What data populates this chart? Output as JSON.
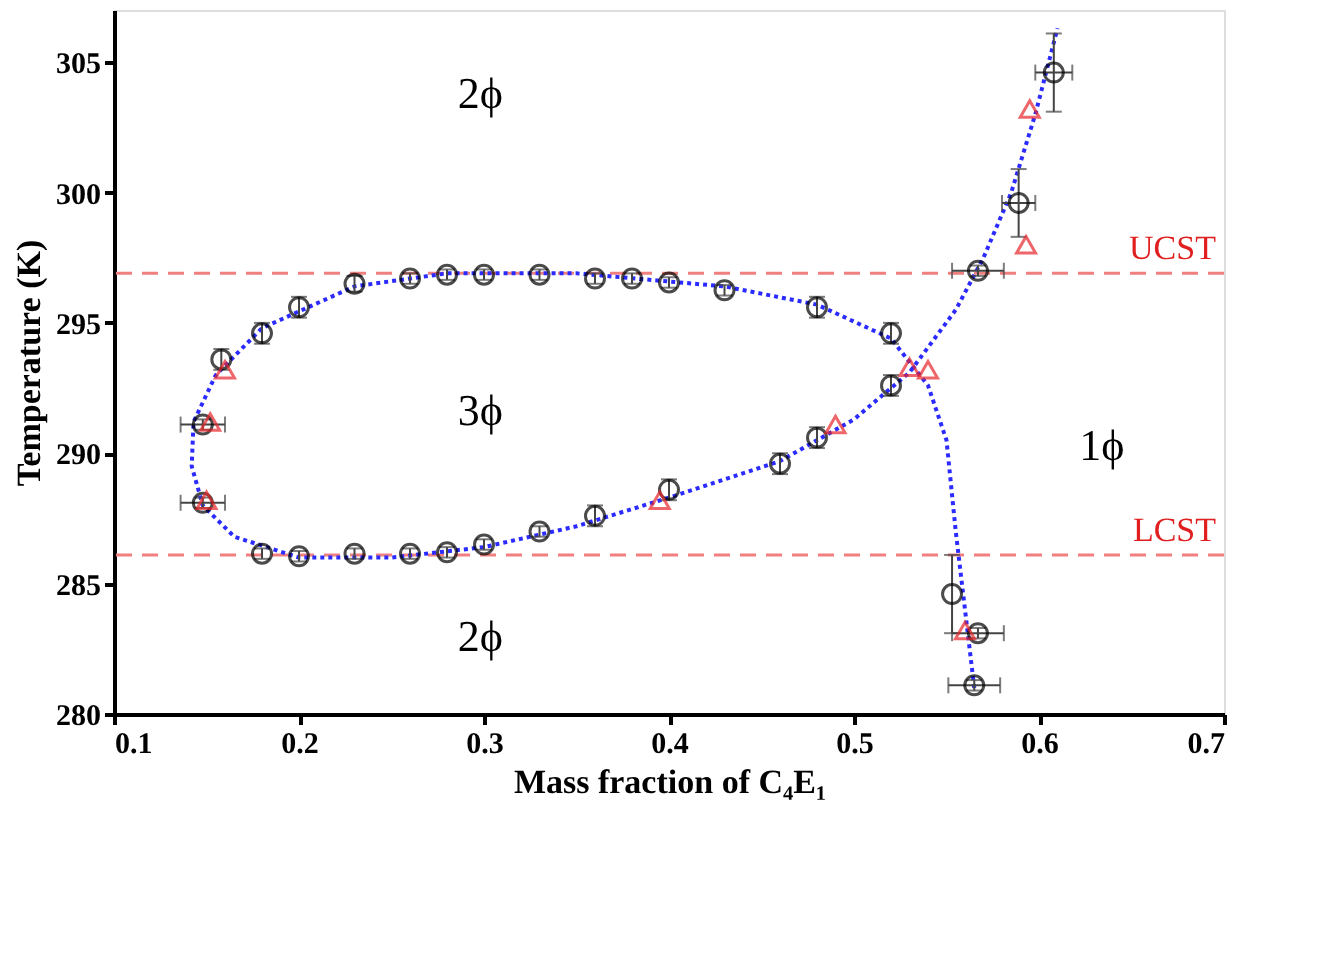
{
  "chart_data": {
    "type": "scatter",
    "xlabel": "Mass fraction of C₄E₁",
    "ylabel": "Temperature (K)",
    "xlim": [
      0.1,
      0.7
    ],
    "xticks": [
      {
        "value": 0.1,
        "label": "0.1"
      },
      {
        "value": 0.2,
        "label": "0.2"
      },
      {
        "value": 0.3,
        "label": "0.3"
      },
      {
        "value": 0.4,
        "label": "0.4"
      },
      {
        "value": 0.5,
        "label": "0.5"
      },
      {
        "value": 0.6,
        "label": "0.6"
      },
      {
        "value": 0.7,
        "label": "0.7"
      }
    ],
    "ylim": [
      280,
      307
    ],
    "yticks": [
      280,
      285,
      290,
      295,
      300,
      305
    ],
    "grid": false,
    "series": [
      {
        "type": "line",
        "color": "#2b2bff",
        "line_style": "dotted",
        "marker": "none",
        "x": [
          0.565,
          0.56,
          0.555,
          0.55,
          0.54,
          0.52,
          0.48,
          0.43,
          0.35,
          0.28,
          0.23,
          0.18,
          0.155,
          0.143,
          0.142,
          0.148,
          0.165,
          0.2,
          0.25,
          0.3,
          0.35,
          0.4,
          0.46,
          0.5,
          0.53,
          0.555,
          0.57,
          0.585,
          0.598,
          0.61
        ],
        "values": [
          281,
          284,
          287,
          290.5,
          292.6,
          294.4,
          295.7,
          296.4,
          296.9,
          296.9,
          296.4,
          294.8,
          293,
          291.2,
          289.5,
          288,
          286.8,
          286,
          286,
          286.4,
          287.2,
          288.3,
          289.7,
          291.3,
          293.1,
          295.5,
          297.5,
          300,
          303,
          306.3
        ]
      },
      {
        "color": "#000000",
        "marker": "circle",
        "x": [
          0.148,
          0.148,
          0.158,
          0.18,
          0.2,
          0.23,
          0.26,
          0.28,
          0.3,
          0.33,
          0.36,
          0.38,
          0.4,
          0.43,
          0.48,
          0.52,
          0.52,
          0.48,
          0.46,
          0.4,
          0.36,
          0.33,
          0.3,
          0.28,
          0.26,
          0.23,
          0.2,
          0.18,
          0.567,
          0.589,
          0.608,
          0.553,
          0.567,
          0.565
        ],
        "values": [
          288.1,
          291.1,
          293.6,
          294.6,
          295.6,
          296.5,
          296.7,
          296.85,
          296.85,
          296.85,
          296.7,
          296.7,
          296.55,
          296.25,
          295.6,
          294.6,
          292.6,
          290.6,
          289.6,
          288.6,
          287.6,
          287.0,
          286.5,
          286.2,
          286.15,
          286.15,
          286.05,
          286.15,
          297.0,
          299.6,
          304.6,
          284.6,
          283.1,
          281.1
        ],
        "errors": [
          0.2,
          0.2,
          0.4,
          0.4,
          0.4,
          0.3,
          0.2,
          0.2,
          0.2,
          0.2,
          0.2,
          0.2,
          0.2,
          0.2,
          0.4,
          0.4,
          0.4,
          0.4,
          0.4,
          0.4,
          0.4,
          0.2,
          0.2,
          0.2,
          0.2,
          0.2,
          0.2,
          0.2,
          0.2,
          1.3,
          1.5,
          1.5,
          0.2,
          0.2
        ],
        "xerrors": [
          0.012,
          0.012,
          null,
          null,
          null,
          null,
          null,
          null,
          null,
          null,
          null,
          null,
          null,
          null,
          null,
          null,
          null,
          null,
          null,
          null,
          null,
          null,
          null,
          null,
          null,
          null,
          null,
          null,
          0.014,
          0.009,
          0.01,
          null,
          0.014,
          0.014
        ]
      },
      {
        "color": "#e8262a",
        "marker": "triangle",
        "x": [
          0.15,
          0.152,
          0.16,
          0.395,
          0.49,
          0.53,
          0.54,
          0.56,
          0.595,
          0.593
        ],
        "values": [
          288.2,
          291.2,
          293.2,
          288.2,
          291.1,
          293.3,
          293.2,
          283.2,
          303.2,
          298.0
        ]
      }
    ],
    "ref_lines": [
      {
        "axis": "y",
        "value": 296.9,
        "label": "UCST",
        "color": "#f08080",
        "line_style": "dashed"
      },
      {
        "axis": "y",
        "value": 286.1,
        "label": "LCST",
        "color": "#f08080",
        "line_style": "dashed"
      }
    ],
    "annotations": [
      "2ϕ",
      "3ϕ",
      "1ϕ",
      "2ϕ"
    ]
  }
}
